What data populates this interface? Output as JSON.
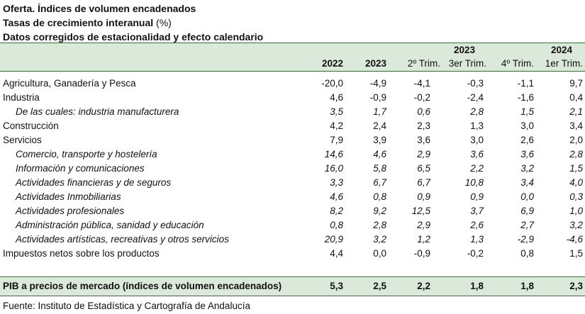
{
  "title": {
    "line1": "Oferta. Índices de volumen encadenados",
    "line2_bold": "Tasas de crecimiento interanual",
    "line2_rest": " (%)",
    "line3": "Datos corregidos de estacionalidad y efecto calendario"
  },
  "header": {
    "group_2023": "2023",
    "group_2024": "2024",
    "columns": [
      "2022",
      "2023",
      "2º Trim.",
      "3er Trim.",
      "4º Trim.",
      "1er Trim."
    ]
  },
  "rows": [
    {
      "label": "Agricultura, Ganadería y Pesca",
      "sub": false,
      "values": [
        "-20,0",
        "-4,9",
        "-4,1",
        "-0,3",
        "-1,1",
        "9,7"
      ]
    },
    {
      "label": "Industria",
      "sub": false,
      "values": [
        "4,6",
        "-0,9",
        "-0,2",
        "-2,4",
        "-1,6",
        "0,4"
      ]
    },
    {
      "label": "De las cuales: industria manufacturera",
      "sub": true,
      "values": [
        "3,5",
        "1,7",
        "0,6",
        "2,8",
        "1,5",
        "2,1"
      ]
    },
    {
      "label": "Construcción",
      "sub": false,
      "values": [
        "4,2",
        "2,4",
        "2,3",
        "1,3",
        "3,0",
        "3,4"
      ]
    },
    {
      "label": "Servicios",
      "sub": false,
      "values": [
        "7,9",
        "3,9",
        "3,6",
        "3,0",
        "2,6",
        "2,0"
      ]
    },
    {
      "label": "Comercio, transporte y hostelería",
      "sub": true,
      "values": [
        "14,6",
        "4,6",
        "2,9",
        "3,6",
        "3,6",
        "2,8"
      ]
    },
    {
      "label": "Información y comunicaciones",
      "sub": true,
      "values": [
        "16,0",
        "5,8",
        "6,5",
        "2,2",
        "3,2",
        "1,5"
      ]
    },
    {
      "label": "Actividades financieras y de seguros",
      "sub": true,
      "values": [
        "3,3",
        "6,7",
        "6,7",
        "10,8",
        "3,4",
        "4,0"
      ]
    },
    {
      "label": "Actividades Inmobiliarias",
      "sub": true,
      "values": [
        "4,6",
        "0,8",
        "0,9",
        "0,9",
        "0,0",
        "0,3"
      ]
    },
    {
      "label": "Actividades profesionales",
      "sub": true,
      "values": [
        "8,2",
        "9,2",
        "12,5",
        "3,7",
        "6,9",
        "1,0"
      ]
    },
    {
      "label": "Administración pública, sanidad y educación",
      "sub": true,
      "values": [
        "0,8",
        "2,8",
        "2,9",
        "2,6",
        "2,7",
        "3,2"
      ]
    },
    {
      "label": "Actividades artísticas, recreativas y otros servicios",
      "sub": true,
      "values": [
        "20,9",
        "3,2",
        "1,2",
        "1,3",
        "-2,9",
        "-4,6"
      ]
    },
    {
      "label": "Impuestos netos sobre los productos",
      "sub": false,
      "values": [
        "4,4",
        "0,0",
        "-0,9",
        "-0,2",
        "0,8",
        "1,5"
      ]
    }
  ],
  "total_row": {
    "label": "PIB a precios de mercado (índices de volumen encadenados)",
    "values": [
      "5,3",
      "2,5",
      "2,2",
      "1,8",
      "1,8",
      "2,3"
    ]
  },
  "source": "Fuente: Instituto de Estadística y Cartografía de Andalucía"
}
